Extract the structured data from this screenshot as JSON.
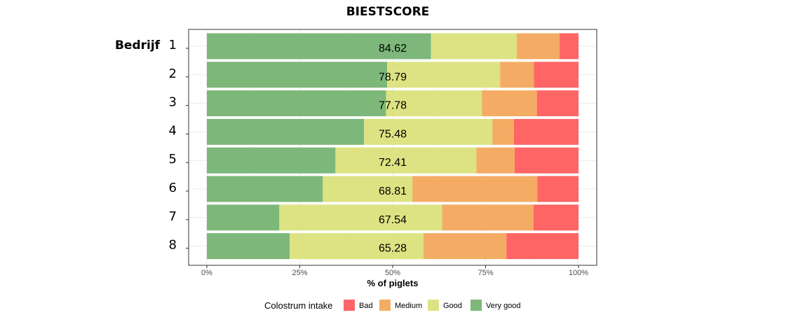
{
  "chart_data": {
    "type": "bar",
    "orientation": "horizontal",
    "stacked": true,
    "title": "BIESTSCORE",
    "category_axis_title": "Bedrijf",
    "categories": [
      "1",
      "2",
      "3",
      "4",
      "5",
      "6",
      "7",
      "8"
    ],
    "series": [
      {
        "name": "Very good",
        "color": "#7db87a",
        "values": [
          60.3,
          48.5,
          48.2,
          42.3,
          34.6,
          31.2,
          19.5,
          22.3
        ]
      },
      {
        "name": "Good",
        "color": "#dde382",
        "values": [
          23.1,
          30.4,
          25.8,
          34.5,
          37.9,
          24.1,
          43.8,
          36.0
        ]
      },
      {
        "name": "Medium",
        "color": "#f4ac64",
        "values": [
          11.5,
          9.1,
          14.8,
          5.8,
          10.3,
          33.6,
          24.6,
          22.3
        ]
      },
      {
        "name": "Bad",
        "color": "#ff6565",
        "values": [
          5.1,
          12.0,
          11.2,
          17.4,
          17.2,
          11.1,
          12.1,
          19.4
        ]
      }
    ],
    "scores": [
      "84.62",
      "78.79",
      "77.78",
      "75.48",
      "72.41",
      "68.81",
      "67.54",
      "65.28"
    ],
    "xlabel": "% of piglets",
    "xlim": [
      0,
      100
    ],
    "xticks": [
      {
        "value": 0,
        "label": "0%"
      },
      {
        "value": 25,
        "label": "25%"
      },
      {
        "value": 50,
        "label": "50%"
      },
      {
        "value": 75,
        "label": "75%"
      },
      {
        "value": 100,
        "label": "100%"
      }
    ],
    "grid": true,
    "legend": {
      "title": "Colostrum intake",
      "position": "bottom",
      "order": [
        "Bad",
        "Medium",
        "Good",
        "Very good"
      ]
    }
  }
}
